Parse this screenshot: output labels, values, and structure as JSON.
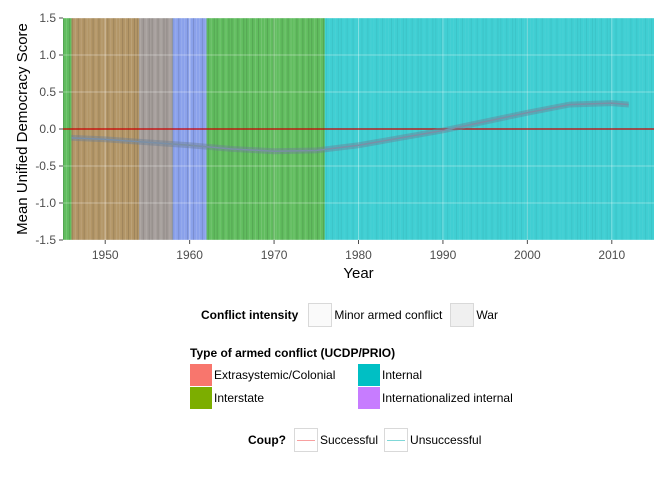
{
  "chart_data": {
    "type": "line",
    "title": "",
    "xlabel": "Year",
    "ylabel": "Mean Unified Democracy Score",
    "xlim": [
      1945,
      2015
    ],
    "ylim": [
      -1.5,
      1.5
    ],
    "xticks": [
      1950,
      1960,
      1970,
      1980,
      1990,
      2000,
      2010
    ],
    "yticks": [
      -1.5,
      -1.0,
      -0.5,
      0.0,
      0.5,
      1.0,
      1.5
    ],
    "grid": true,
    "reference_line": {
      "y": 0.0,
      "color": "#cc0000"
    },
    "series": [
      {
        "x": [
          1946,
          1950,
          1955,
          1960,
          1965,
          1970,
          1975,
          1980,
          1985,
          1990,
          1995,
          2000,
          2005,
          2010,
          2012
        ],
        "y": [
          -0.12,
          -0.14,
          -0.18,
          -0.22,
          -0.27,
          -0.3,
          -0.29,
          -0.22,
          -0.12,
          -0.02,
          0.1,
          0.22,
          0.33,
          0.35,
          0.33
        ],
        "color": "#7a8fa6"
      }
    ],
    "conflict_bands": [
      {
        "start": 1945,
        "end": 1954,
        "type": "Interstate"
      },
      {
        "start": 1946,
        "end": 1958,
        "type": "Extrasystemic/Colonial"
      },
      {
        "start": 1958,
        "end": 1962,
        "type": "Internationalized internal"
      },
      {
        "start": 1962,
        "end": 1976,
        "type": "Interstate"
      },
      {
        "start": 1945,
        "end": 2015,
        "type": "Internal"
      }
    ],
    "legends": {
      "conflict_intensity": {
        "title": "Conflict intensity",
        "items": [
          "Minor armed conflict",
          "War"
        ]
      },
      "conflict_type": {
        "title": "Type of armed conflict (UCDP/PRIO)",
        "items": [
          {
            "label": "Extrasystemic/Colonial",
            "color": "#f8766d"
          },
          {
            "label": "Internal",
            "color": "#00bfc4"
          },
          {
            "label": "Interstate",
            "color": "#7cae00"
          },
          {
            "label": "Internationalized internal",
            "color": "#c77cff"
          }
        ]
      },
      "coup": {
        "title": "Coup?",
        "items": [
          {
            "label": "Successful",
            "color": "#f8a0a0"
          },
          {
            "label": "Unsuccessful",
            "color": "#80d8d8"
          }
        ]
      }
    }
  }
}
